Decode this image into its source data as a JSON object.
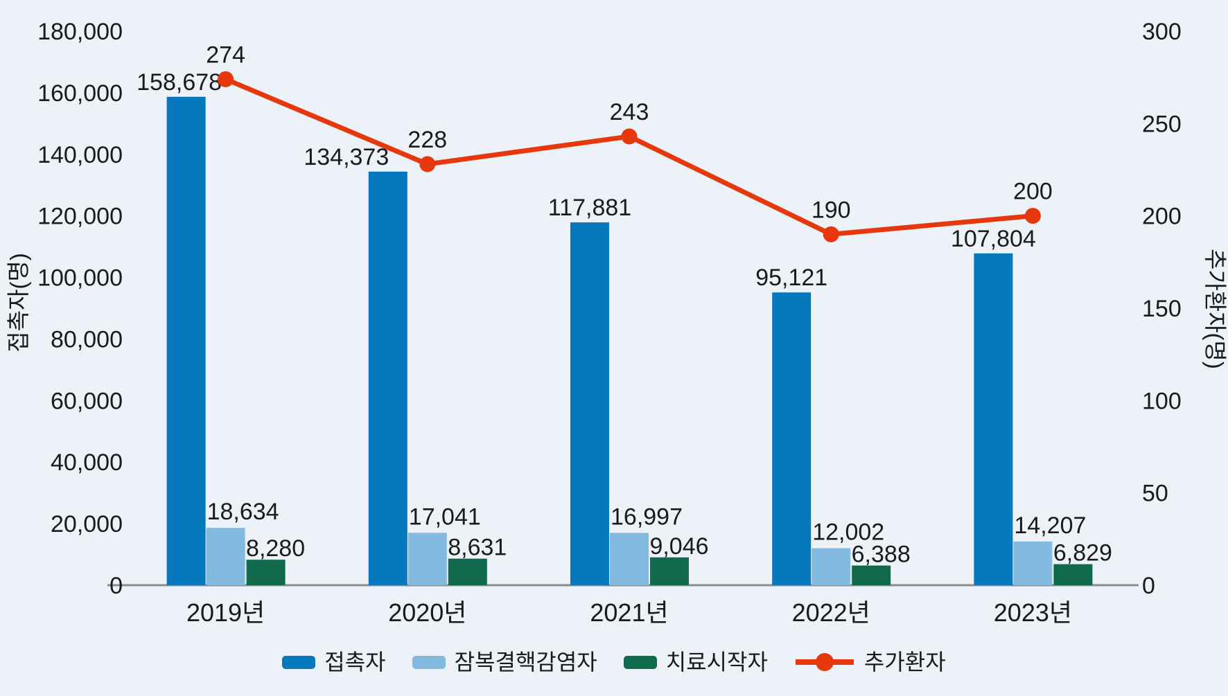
{
  "chart_data": {
    "type": "bar",
    "subtype": "grouped-bars-with-line-overlay",
    "categories": [
      "2019년",
      "2020년",
      "2021년",
      "2022년",
      "2023년"
    ],
    "bar_series": [
      {
        "name": "접촉자",
        "color": "#0679BD",
        "axis": "left",
        "values": [
          158678,
          134373,
          117881,
          95121,
          107804
        ]
      },
      {
        "name": "잠복결핵감염자",
        "color": "#83BADF",
        "axis": "left",
        "values": [
          18634,
          17041,
          16997,
          12002,
          14207
        ]
      },
      {
        "name": "치료시작자",
        "color": "#0F6B4B",
        "axis": "left",
        "values": [
          8280,
          8631,
          9046,
          6388,
          6829
        ]
      }
    ],
    "line_series": [
      {
        "name": "추가환자",
        "color": "#E6380C",
        "axis": "right",
        "marker": "circle",
        "values": [
          274,
          228,
          243,
          190,
          200
        ]
      }
    ],
    "left_axis": {
      "label": "접촉자(명)",
      "min": 0,
      "max": 180000,
      "tick_step": 20000
    },
    "right_axis": {
      "label": "추가환자(명)",
      "min": 0,
      "max": 300,
      "tick_step": 50
    },
    "title": "",
    "grid": false,
    "legend_position": "bottom",
    "colors": {
      "background": "#EDF2F8",
      "axis_line": "#8C8C8C",
      "text": "#1A1A1A"
    }
  }
}
